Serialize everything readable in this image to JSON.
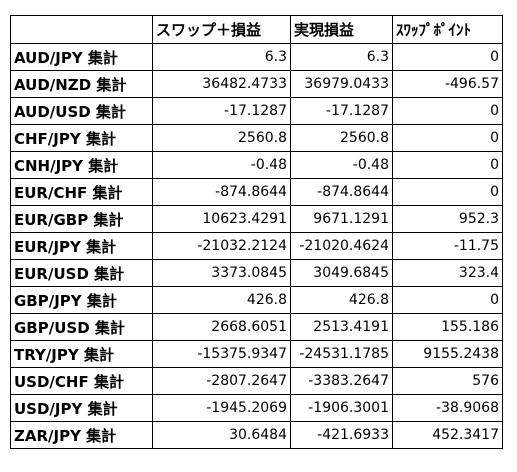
{
  "table": {
    "header": [
      "スワップ＋損益",
      "実現損益",
      "ｽﾜｯﾌﾟﾎﾟｲﾝﾄ"
    ],
    "rows": [
      [
        "AUD/JPY 集計",
        "6.3",
        "6.3",
        "0"
      ],
      [
        "AUD/NZD 集計",
        "36482.4733",
        "36979.0433",
        "-496.57"
      ],
      [
        "AUD/USD 集計",
        "-17.1287",
        "-17.1287",
        "0"
      ],
      [
        "CHF/JPY 集計",
        "2560.8",
        "2560.8",
        "0"
      ],
      [
        "CNH/JPY 集計",
        "-0.48",
        "-0.48",
        "0"
      ],
      [
        "EUR/CHF 集計",
        "-874.8644",
        "-874.8644",
        "0"
      ],
      [
        "EUR/GBP 集計",
        "10623.4291",
        "9671.1291",
        "952.3"
      ],
      [
        "EUR/JPY 集計",
        "-21032.2124",
        "-21020.4624",
        "-11.75"
      ],
      [
        "EUR/USD 集計",
        "3373.0845",
        "3049.6845",
        "323.4"
      ],
      [
        "GBP/JPY 集計",
        "426.8",
        "426.8",
        "0"
      ],
      [
        "GBP/USD 集計",
        "2668.6051",
        "2513.4191",
        "155.186"
      ],
      [
        "TRY/JPY 集計",
        "-15375.9347",
        "-24531.1785",
        "9155.2438"
      ],
      [
        "USD/CHF 集計",
        "-2807.2647",
        "-3383.2647",
        "576"
      ],
      [
        "USD/JPY 集計",
        "-1945.2069",
        "-1906.3001",
        "-38.9068"
      ],
      [
        "ZAR/JPY 集計",
        "30.6484",
        "-421.6933",
        "452.3417"
      ]
    ]
  }
}
